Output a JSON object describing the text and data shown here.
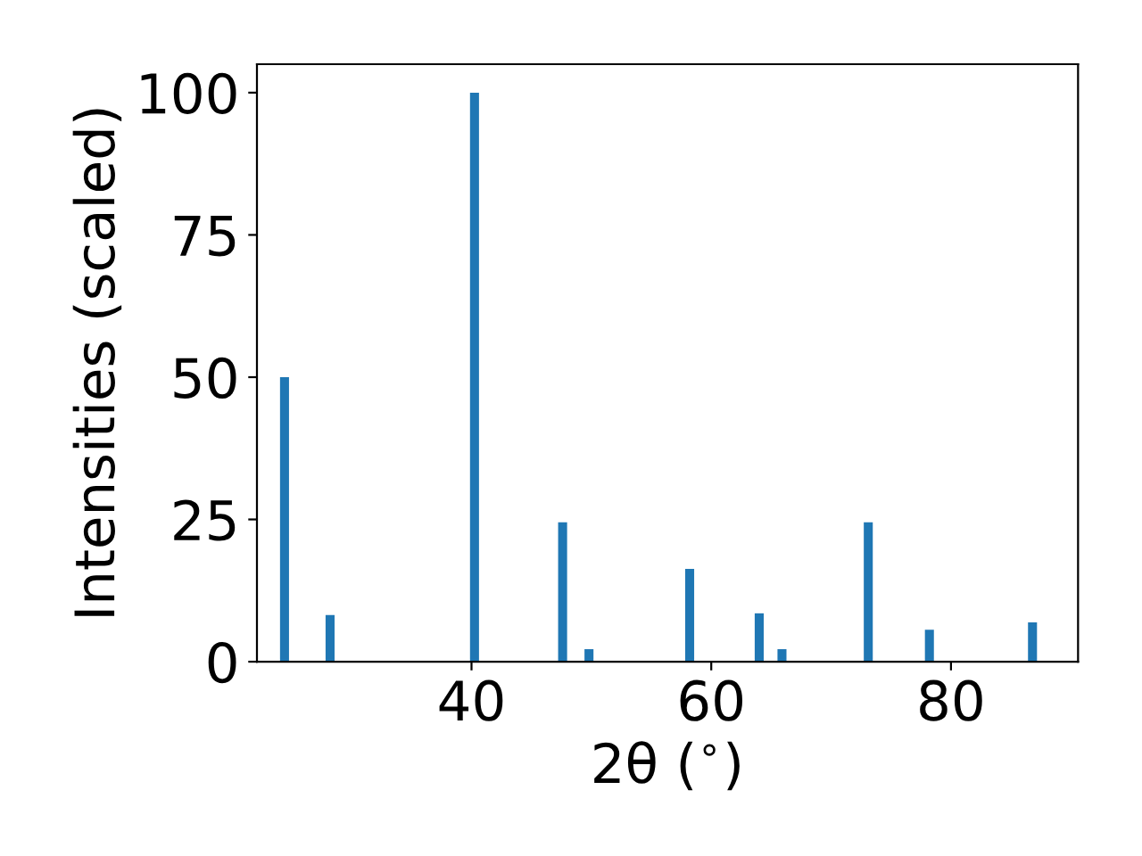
{
  "chart_data": {
    "type": "bar",
    "xlabel": "2θ ($^{∘}$)",
    "ylabel": "Intensities (scaled)",
    "x": [
      24.4,
      28.2,
      40.25,
      47.6,
      49.8,
      58.2,
      64.0,
      65.9,
      73.1,
      78.2,
      86.8
    ],
    "values": [
      50,
      8.2,
      100,
      24.5,
      2.2,
      16.3,
      8.5,
      2.2,
      24.5,
      5.6,
      6.9
    ],
    "color": "#1f77b4",
    "xlim": [
      22.1,
      90.6
    ],
    "xticks": [
      40,
      60,
      80
    ],
    "ylim": [
      0,
      105
    ],
    "yticks": [
      0,
      25,
      50,
      75,
      100
    ],
    "grid": false,
    "legend": false
  }
}
